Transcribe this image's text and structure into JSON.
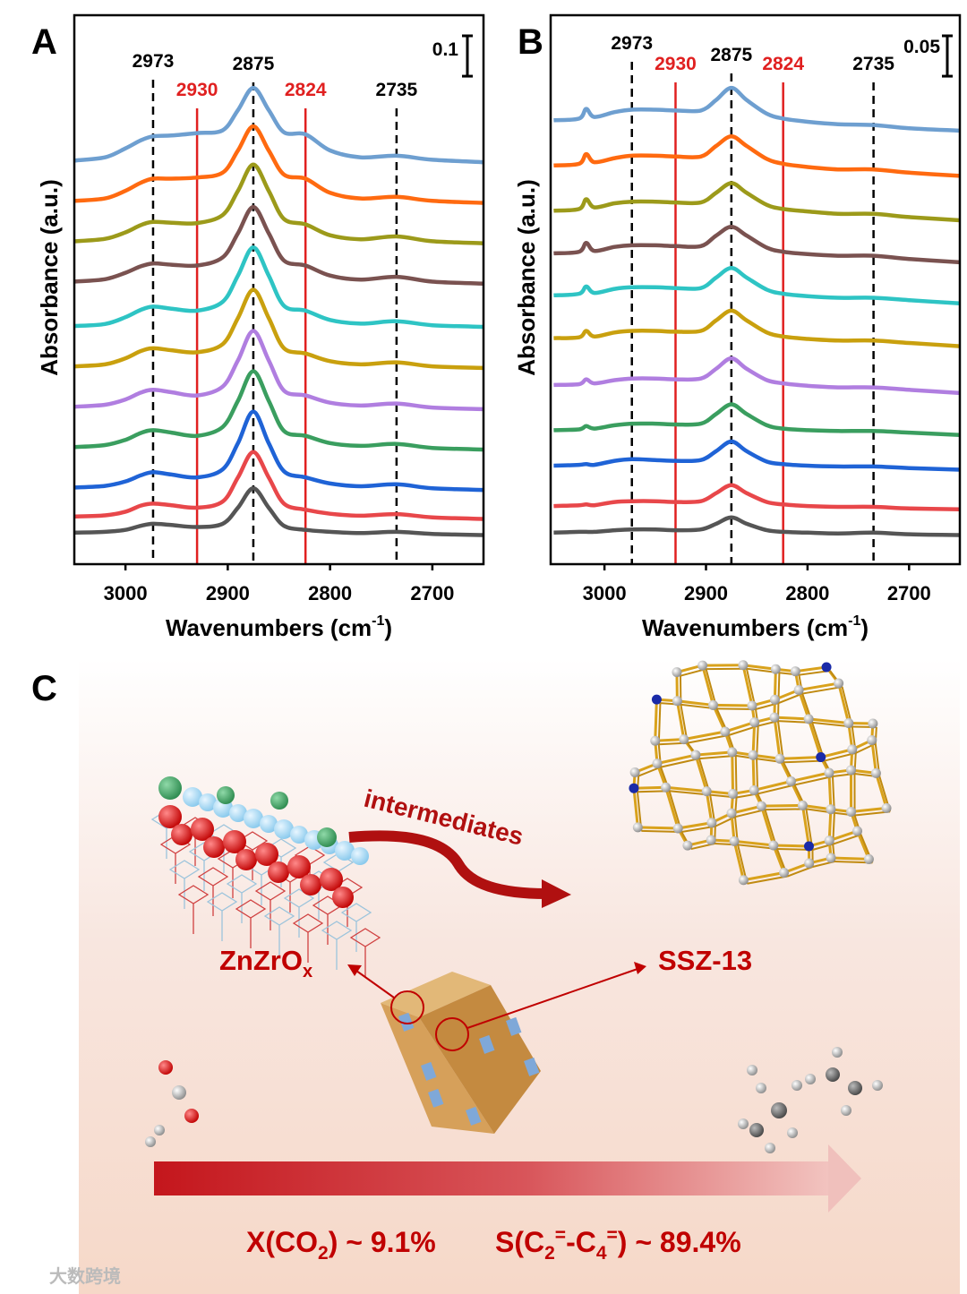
{
  "chart_data": [
    {
      "type": "line",
      "panel": "A",
      "x": [
        3050,
        3020,
        3000,
        2985,
        2973,
        2955,
        2930,
        2905,
        2890,
        2875,
        2860,
        2845,
        2824,
        2800,
        2770,
        2735,
        2700,
        2650
      ],
      "series": [
        {
          "color": "#555555",
          "values": [
            0.078,
            0.08,
            0.085,
            0.095,
            0.1,
            0.097,
            0.092,
            0.1,
            0.14,
            0.188,
            0.14,
            0.095,
            0.085,
            0.08,
            0.077,
            0.08,
            0.075,
            0.072
          ]
        },
        {
          "color": "#e8474a",
          "values": [
            0.118,
            0.121,
            0.13,
            0.145,
            0.15,
            0.146,
            0.14,
            0.155,
            0.215,
            0.278,
            0.215,
            0.15,
            0.135,
            0.125,
            0.12,
            0.124,
            0.116,
            0.112
          ]
        },
        {
          "color": "#1f63d6",
          "values": [
            0.19,
            0.194,
            0.205,
            0.22,
            0.228,
            0.222,
            0.215,
            0.235,
            0.3,
            0.378,
            0.3,
            0.23,
            0.215,
            0.2,
            0.193,
            0.198,
            0.188,
            0.184
          ]
        },
        {
          "color": "#3a9e5f",
          "values": [
            0.29,
            0.295,
            0.308,
            0.325,
            0.332,
            0.326,
            0.318,
            0.34,
            0.405,
            0.478,
            0.405,
            0.33,
            0.318,
            0.3,
            0.293,
            0.298,
            0.288,
            0.284
          ]
        },
        {
          "color": "#b07ee0",
          "values": [
            0.39,
            0.395,
            0.408,
            0.425,
            0.432,
            0.426,
            0.418,
            0.44,
            0.505,
            0.578,
            0.505,
            0.43,
            0.418,
            0.4,
            0.393,
            0.398,
            0.388,
            0.384
          ]
        },
        {
          "color": "#c9a00e",
          "values": [
            0.49,
            0.495,
            0.51,
            0.528,
            0.535,
            0.53,
            0.525,
            0.545,
            0.61,
            0.68,
            0.61,
            0.535,
            0.522,
            0.503,
            0.495,
            0.5,
            0.49,
            0.486
          ]
        },
        {
          "color": "#2ec4c4",
          "values": [
            0.59,
            0.595,
            0.612,
            0.63,
            0.638,
            0.633,
            0.628,
            0.65,
            0.715,
            0.785,
            0.715,
            0.64,
            0.628,
            0.605,
            0.596,
            0.602,
            0.592,
            0.588
          ]
        },
        {
          "color": "#7a5250",
          "values": [
            0.7,
            0.706,
            0.722,
            0.738,
            0.745,
            0.742,
            0.74,
            0.76,
            0.82,
            0.885,
            0.82,
            0.752,
            0.74,
            0.715,
            0.705,
            0.712,
            0.7,
            0.695
          ]
        },
        {
          "color": "#9c9a1a",
          "values": [
            0.8,
            0.806,
            0.822,
            0.84,
            0.848,
            0.846,
            0.845,
            0.865,
            0.925,
            0.99,
            0.925,
            0.855,
            0.842,
            0.815,
            0.805,
            0.812,
            0.8,
            0.795
          ]
        },
        {
          "color": "#ff6a10",
          "values": [
            0.9,
            0.906,
            0.925,
            0.945,
            0.955,
            0.955,
            0.958,
            0.97,
            1.025,
            1.085,
            1.025,
            0.965,
            0.955,
            0.92,
            0.906,
            0.91,
            0.9,
            0.895
          ]
        },
        {
          "color": "#6e9fd0",
          "values": [
            1.0,
            1.008,
            1.03,
            1.05,
            1.06,
            1.062,
            1.068,
            1.075,
            1.125,
            1.18,
            1.125,
            1.07,
            1.065,
            1.025,
            1.008,
            1.012,
            1.002,
            0.996
          ]
        }
      ],
      "xlim": [
        3050,
        2650
      ],
      "xticks": [
        3000,
        2900,
        2800,
        2700
      ],
      "ylim": [
        0,
        1.36
      ],
      "xlabel": [
        "Wavenumbers (cm",
        "-1",
        ")"
      ],
      "ylabel": "Absorbance (a.u.)",
      "annotations": [
        {
          "x": 2973,
          "color": "#000000",
          "dashed": true
        },
        {
          "x": 2930,
          "color": "#e02020",
          "dashed": false
        },
        {
          "x": 2875,
          "color": "#000000",
          "dashed": true
        },
        {
          "x": 2824,
          "color": "#e02020",
          "dashed": false
        },
        {
          "x": 2735,
          "color": "#000000",
          "dashed": true
        }
      ],
      "scale_bar": 0.1
    },
    {
      "type": "line",
      "panel": "B",
      "x": [
        3050,
        3025,
        3018,
        3010,
        2990,
        2973,
        2950,
        2930,
        2905,
        2890,
        2875,
        2860,
        2840,
        2824,
        2800,
        2770,
        2735,
        2700,
        2650
      ],
      "series": [
        {
          "color": "#555555",
          "values": [
            0.039,
            0.04,
            0.04,
            0.04,
            0.042,
            0.043,
            0.043,
            0.042,
            0.043,
            0.05,
            0.058,
            0.05,
            0.042,
            0.04,
            0.039,
            0.038,
            0.039,
            0.037,
            0.036
          ]
        },
        {
          "color": "#e8474a",
          "values": [
            0.072,
            0.073,
            0.074,
            0.073,
            0.077,
            0.078,
            0.078,
            0.077,
            0.078,
            0.088,
            0.098,
            0.088,
            0.077,
            0.074,
            0.072,
            0.071,
            0.071,
            0.069,
            0.068
          ]
        },
        {
          "color": "#1f63d6",
          "values": [
            0.122,
            0.123,
            0.124,
            0.123,
            0.128,
            0.13,
            0.129,
            0.128,
            0.129,
            0.14,
            0.152,
            0.14,
            0.127,
            0.124,
            0.122,
            0.121,
            0.121,
            0.119,
            0.117
          ]
        },
        {
          "color": "#3a9e5f",
          "values": [
            0.166,
            0.167,
            0.171,
            0.168,
            0.172,
            0.174,
            0.174,
            0.173,
            0.174,
            0.186,
            0.198,
            0.186,
            0.172,
            0.168,
            0.166,
            0.165,
            0.165,
            0.163,
            0.16
          ]
        },
        {
          "color": "#b07ee0",
          "values": [
            0.222,
            0.223,
            0.229,
            0.224,
            0.228,
            0.23,
            0.23,
            0.229,
            0.23,
            0.242,
            0.255,
            0.242,
            0.228,
            0.224,
            0.221,
            0.219,
            0.219,
            0.216,
            0.212
          ]
        },
        {
          "color": "#c9a00e",
          "values": [
            0.28,
            0.281,
            0.289,
            0.282,
            0.287,
            0.289,
            0.289,
            0.288,
            0.289,
            0.302,
            0.314,
            0.302,
            0.287,
            0.282,
            0.279,
            0.277,
            0.277,
            0.274,
            0.27
          ]
        },
        {
          "color": "#2ec4c4",
          "values": [
            0.333,
            0.335,
            0.344,
            0.336,
            0.341,
            0.343,
            0.343,
            0.342,
            0.342,
            0.355,
            0.367,
            0.355,
            0.34,
            0.335,
            0.332,
            0.33,
            0.33,
            0.327,
            0.323
          ]
        },
        {
          "color": "#7a5250",
          "values": [
            0.385,
            0.387,
            0.398,
            0.388,
            0.393,
            0.395,
            0.395,
            0.394,
            0.394,
            0.407,
            0.418,
            0.407,
            0.392,
            0.387,
            0.384,
            0.382,
            0.382,
            0.378,
            0.374
          ]
        },
        {
          "color": "#9c9a1a",
          "values": [
            0.438,
            0.44,
            0.452,
            0.442,
            0.447,
            0.449,
            0.449,
            0.448,
            0.448,
            0.46,
            0.472,
            0.46,
            0.445,
            0.44,
            0.437,
            0.434,
            0.434,
            0.43,
            0.426
          ]
        },
        {
          "color": "#ff6a10",
          "values": [
            0.494,
            0.496,
            0.508,
            0.498,
            0.503,
            0.506,
            0.506,
            0.505,
            0.505,
            0.518,
            0.53,
            0.518,
            0.502,
            0.496,
            0.492,
            0.489,
            0.489,
            0.485,
            0.481
          ]
        },
        {
          "color": "#6e9fd0",
          "values": [
            0.55,
            0.552,
            0.564,
            0.554,
            0.56,
            0.563,
            0.563,
            0.562,
            0.562,
            0.575,
            0.59,
            0.575,
            0.558,
            0.552,
            0.548,
            0.545,
            0.544,
            0.54,
            0.537
          ]
        }
      ],
      "xlim": [
        3053,
        2650
      ],
      "xticks": [
        3000,
        2900,
        2800,
        2700
      ],
      "ylim": [
        0,
        0.68
      ],
      "xlabel": [
        "Wavenumbers (cm",
        "-1",
        ")"
      ],
      "ylabel": "Absorbance (a.u.)",
      "annotations": [
        {
          "x": 2973,
          "color": "#000000",
          "dashed": true
        },
        {
          "x": 2930,
          "color": "#e02020",
          "dashed": false
        },
        {
          "x": 2875,
          "color": "#000000",
          "dashed": true
        },
        {
          "x": 2824,
          "color": "#e02020",
          "dashed": false
        },
        {
          "x": 2735,
          "color": "#000000",
          "dashed": true
        }
      ],
      "scale_bar": 0.05
    }
  ],
  "scheme": {
    "panel": "C",
    "arrow_label": "intermediates",
    "left_label": [
      "ZnZrO",
      "x"
    ],
    "right_label": "SSZ-13",
    "conversion": [
      "X(CO",
      "2",
      ") ~ 9.1%"
    ],
    "selectivity": [
      "S(C",
      "2",
      "=",
      "-C",
      "4",
      "=",
      ") ~ 89.4%"
    ],
    "watermark": "大数跨境"
  }
}
